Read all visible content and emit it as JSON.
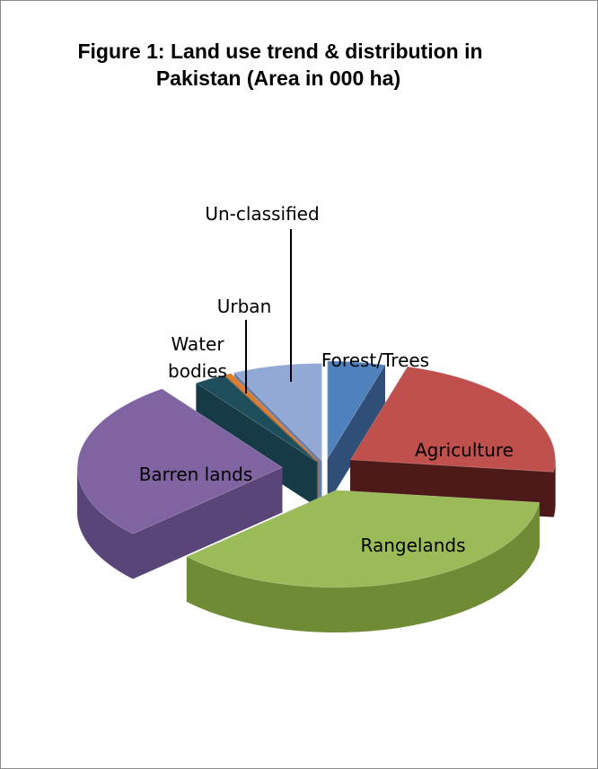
{
  "chart_data": {
    "type": "pie",
    "title_line1": "Figure 1: Land use trend & distribution in",
    "title_line2": "Pakistan (Area in 000 ha)",
    "slices": [
      {
        "label": "Forest/Trees",
        "value": 4.5,
        "color": "#4f81bd",
        "dark": "#2f4f78",
        "explode": 22,
        "label_pos": "outside-top"
      },
      {
        "label": "Agriculture",
        "value": 22.5,
        "color": "#c0504d",
        "dark": "#4d1a19",
        "explode": 34,
        "label_pos": "inside"
      },
      {
        "label": "Rangelands",
        "value": 36,
        "color": "#9bbb59",
        "dark": "#6f8c35",
        "explode": 40,
        "label_pos": "inside"
      },
      {
        "label": "Barren lands",
        "value": 27,
        "color": "#8064a2",
        "dark": "#5a4578",
        "explode": 48,
        "label_pos": "inside"
      },
      {
        "label": "Water bodies",
        "value": 2.5,
        "color": "#1e4d5c",
        "dark": "#163a46",
        "explode": 18,
        "label_pos": "callout"
      },
      {
        "label": "Urban",
        "value": 0.5,
        "color": "#e07b28",
        "dark": "#9a5218",
        "explode": 18,
        "label_pos": "callout"
      },
      {
        "label": "Un-classified",
        "value": 7,
        "color": "#93a9d5",
        "dark": "#6b7ea8",
        "explode": 18,
        "label_pos": "callout"
      }
    ]
  }
}
